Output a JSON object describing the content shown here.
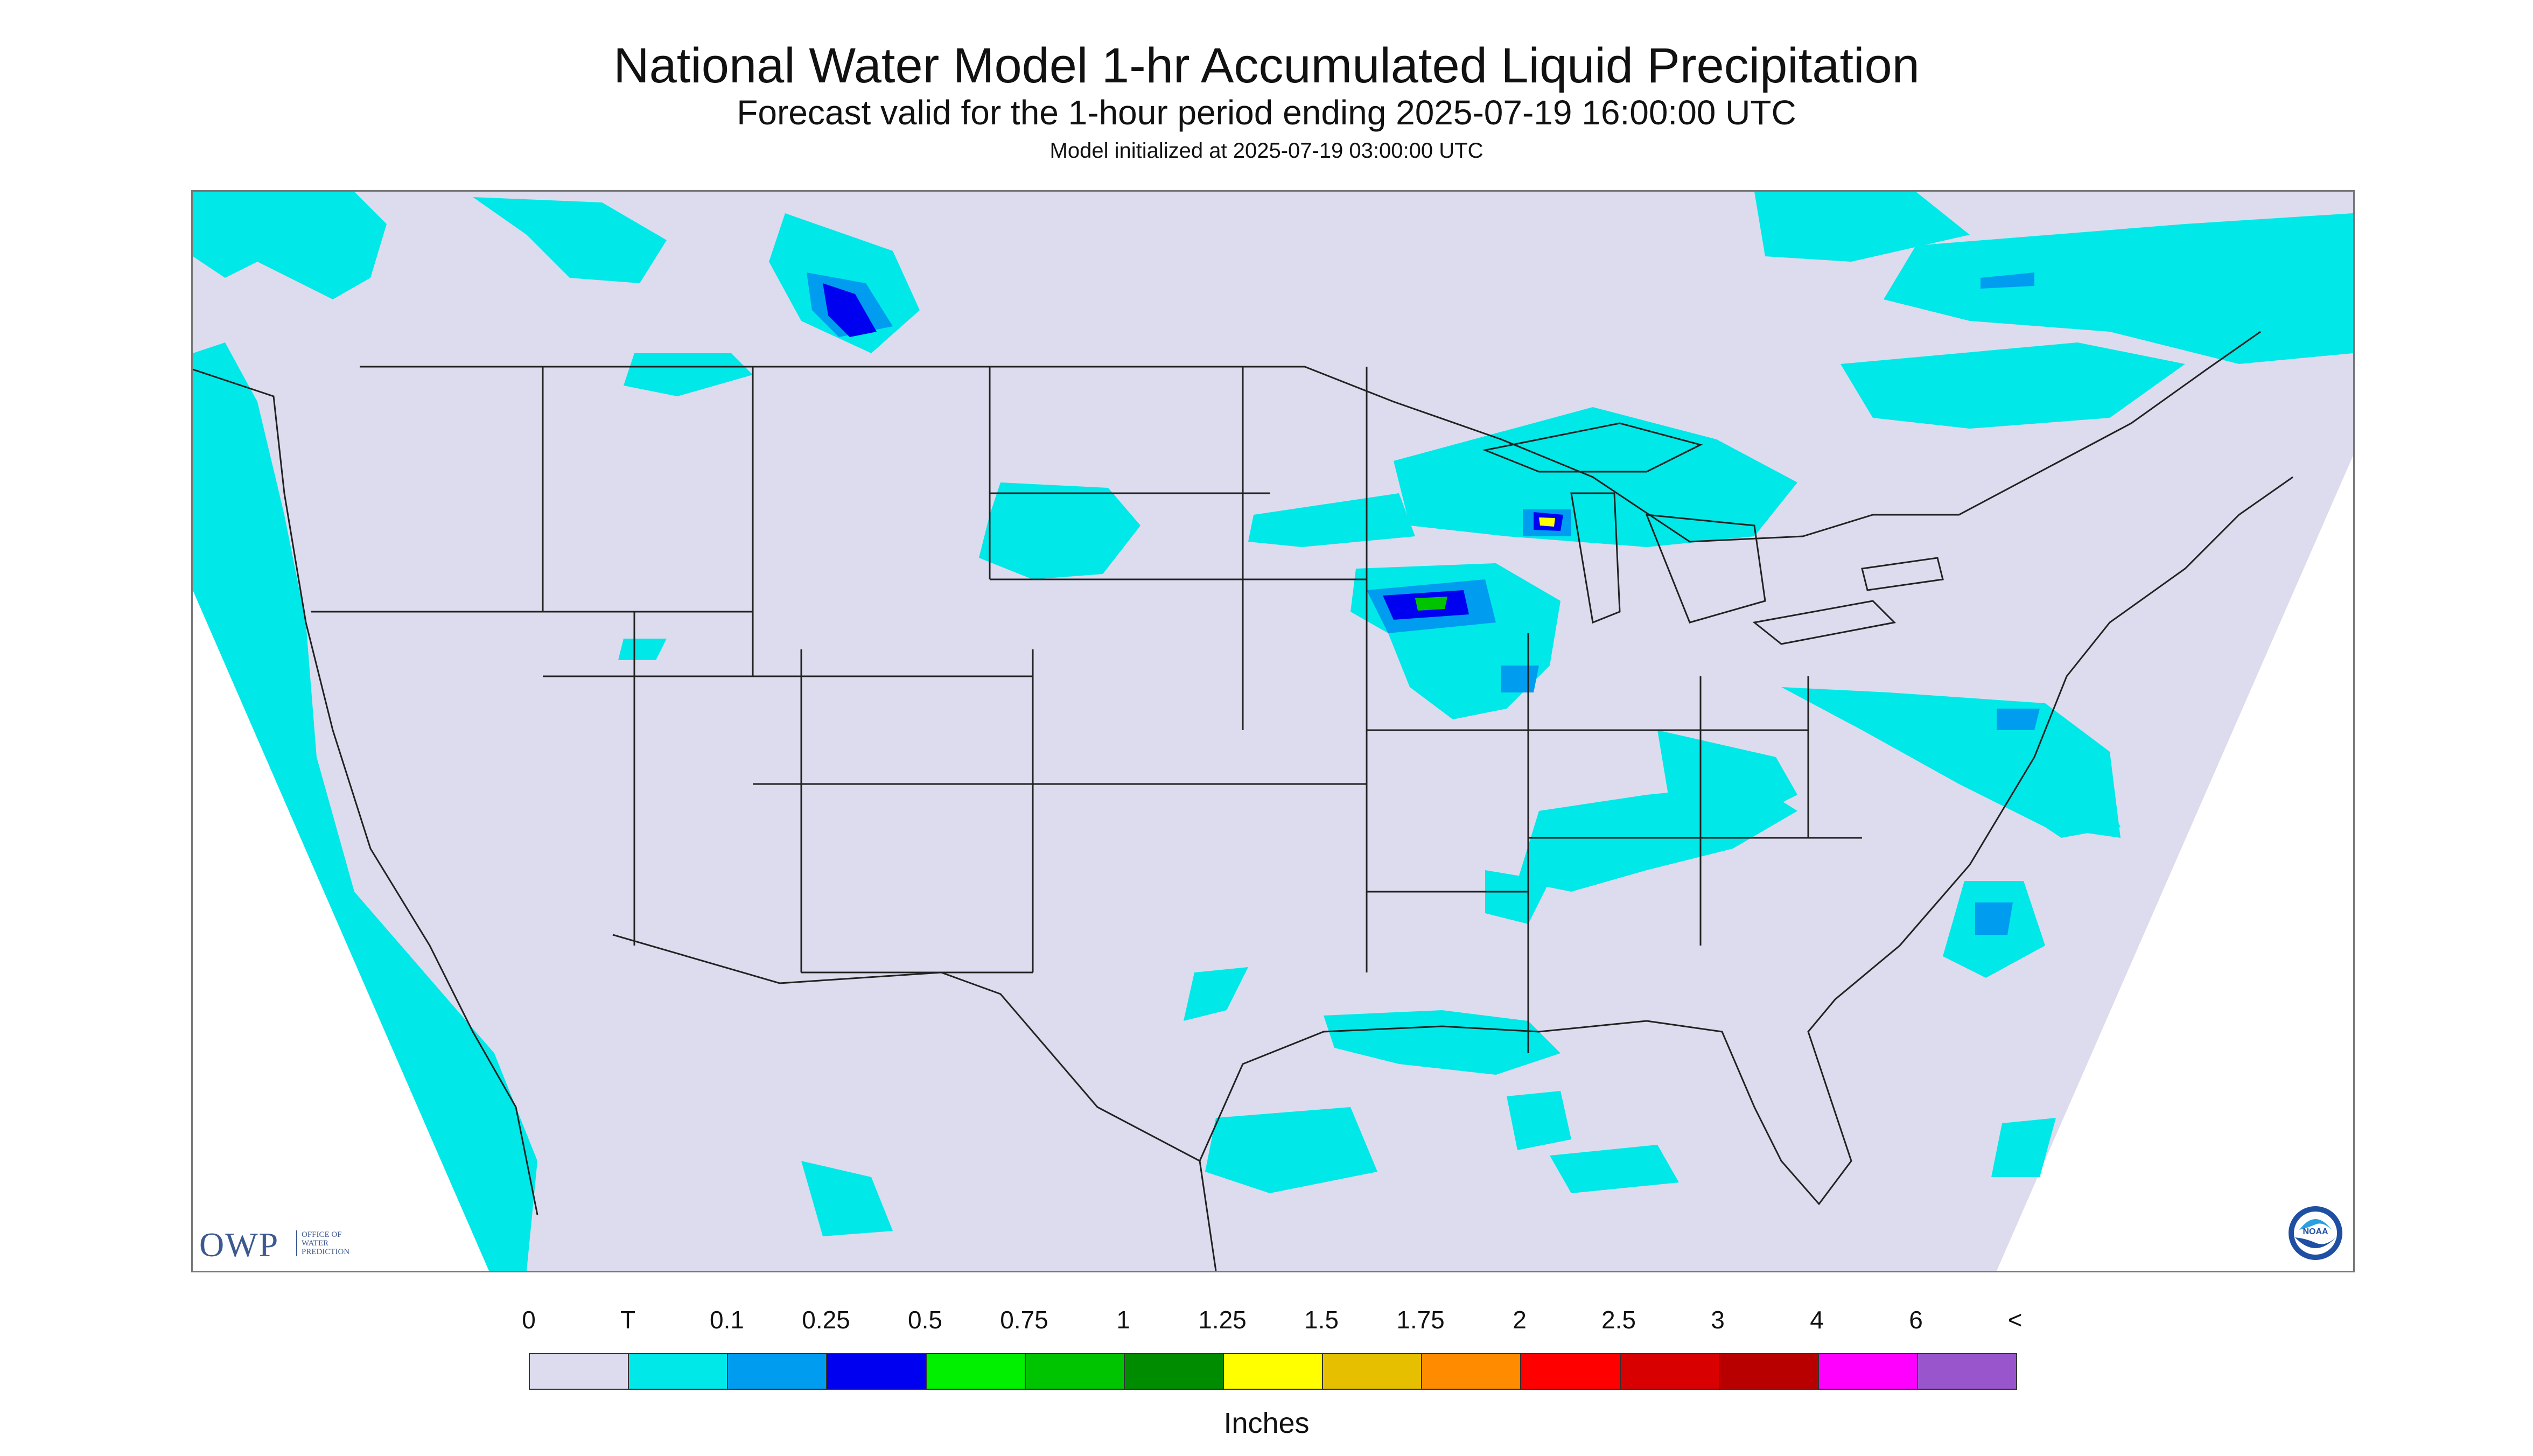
{
  "header": {
    "title": "National Water Model 1-hr Accumulated Liquid Precipitation",
    "subtitle": "Forecast valid for the 1-hour period ending 2025-07-19 16:00:00 UTC",
    "init": "Model initialized at 2025-07-19 03:00:00 UTC"
  },
  "logos": {
    "owp_mark": "OWP",
    "owp_sub": "OFFICE OF WATER PREDICTION",
    "noaa_mark": "NOAA"
  },
  "legend": {
    "labels": [
      "0",
      "T",
      "0.1",
      "0.25",
      "0.5",
      "0.75",
      "1",
      "1.25",
      "1.5",
      "1.75",
      "2",
      "2.5",
      "3",
      "4",
      "6",
      "<"
    ],
    "colors": [
      "#dcdcee",
      "#00e8e8",
      "#009cf0",
      "#0000f0",
      "#00f000",
      "#00c400",
      "#008c00",
      "#ffff00",
      "#e6c000",
      "#ff8c00",
      "#ff0000",
      "#d80000",
      "#b80000",
      "#ff00ff",
      "#9955cc"
    ],
    "units": "Inches"
  },
  "colors": {
    "no_data": "#ffffff",
    "background": "#dcdcee",
    "trace": "#00e8e8",
    "light": "#009cf0",
    "moderate": "#0000f0",
    "heavy": "#00c400",
    "heavier": "#ffff00",
    "borders": "#222222"
  }
}
